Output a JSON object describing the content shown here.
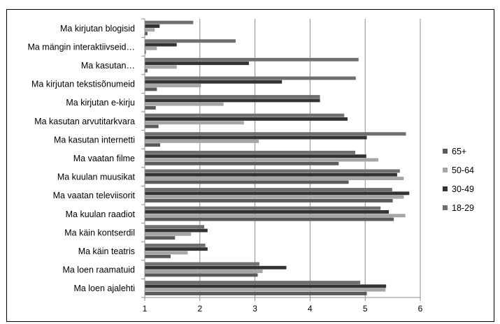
{
  "chart_data": {
    "type": "bar",
    "orientation": "horizontal",
    "title": "",
    "xlabel": "",
    "ylabel": "",
    "xlim": [
      1,
      6
    ],
    "xticks": [
      "1",
      "2",
      "3",
      "4",
      "5",
      "6"
    ],
    "grid": true,
    "legend_position": "right",
    "categories": [
      "Ma loen ajalehti",
      "Ma loen raamatuid",
      "Ma käin teatris",
      "Ma käin kontserdil",
      "Ma kuulan raadiot",
      "Ma vaatan televiisorit",
      "Ma kuulan muusikat",
      "Ma vaatan filme",
      "Ma kasutan internetti",
      "Ma kasutan arvutitarkvara",
      "Ma kirjutan e-kirju",
      "Ma kirjutan tekstisõnumeid",
      "Ma kasutan…",
      "Ma mängin interaktiivseid…",
      "Ma kirjutan blogisid"
    ],
    "series": [
      {
        "name": "65+",
        "color": "#5a5a5a",
        "values": [
          5.03,
          3.05,
          1.47,
          1.55,
          5.52,
          5.5,
          4.7,
          4.52,
          1.28,
          1.25,
          1.2,
          1.22,
          1.05,
          1.02,
          1.05
        ]
      },
      {
        "name": "50-64",
        "color": "#a6a6a6",
        "values": [
          5.37,
          3.14,
          1.78,
          1.84,
          5.73,
          5.7,
          5.7,
          5.24,
          3.07,
          2.8,
          2.43,
          2.02,
          1.58,
          1.22,
          1.18
        ]
      },
      {
        "name": "30-49",
        "color": "#333333",
        "values": [
          5.38,
          3.57,
          2.14,
          2.14,
          5.43,
          5.8,
          5.58,
          5.02,
          5.03,
          4.68,
          4.18,
          3.49,
          2.89,
          1.58,
          1.27
        ]
      },
      {
        "name": "18-29",
        "color": "#6f6f6f",
        "values": [
          4.91,
          3.08,
          2.1,
          2.08,
          5.28,
          5.49,
          5.63,
          4.82,
          5.74,
          4.62,
          4.18,
          4.83,
          4.88,
          2.65,
          1.88
        ]
      }
    ]
  }
}
